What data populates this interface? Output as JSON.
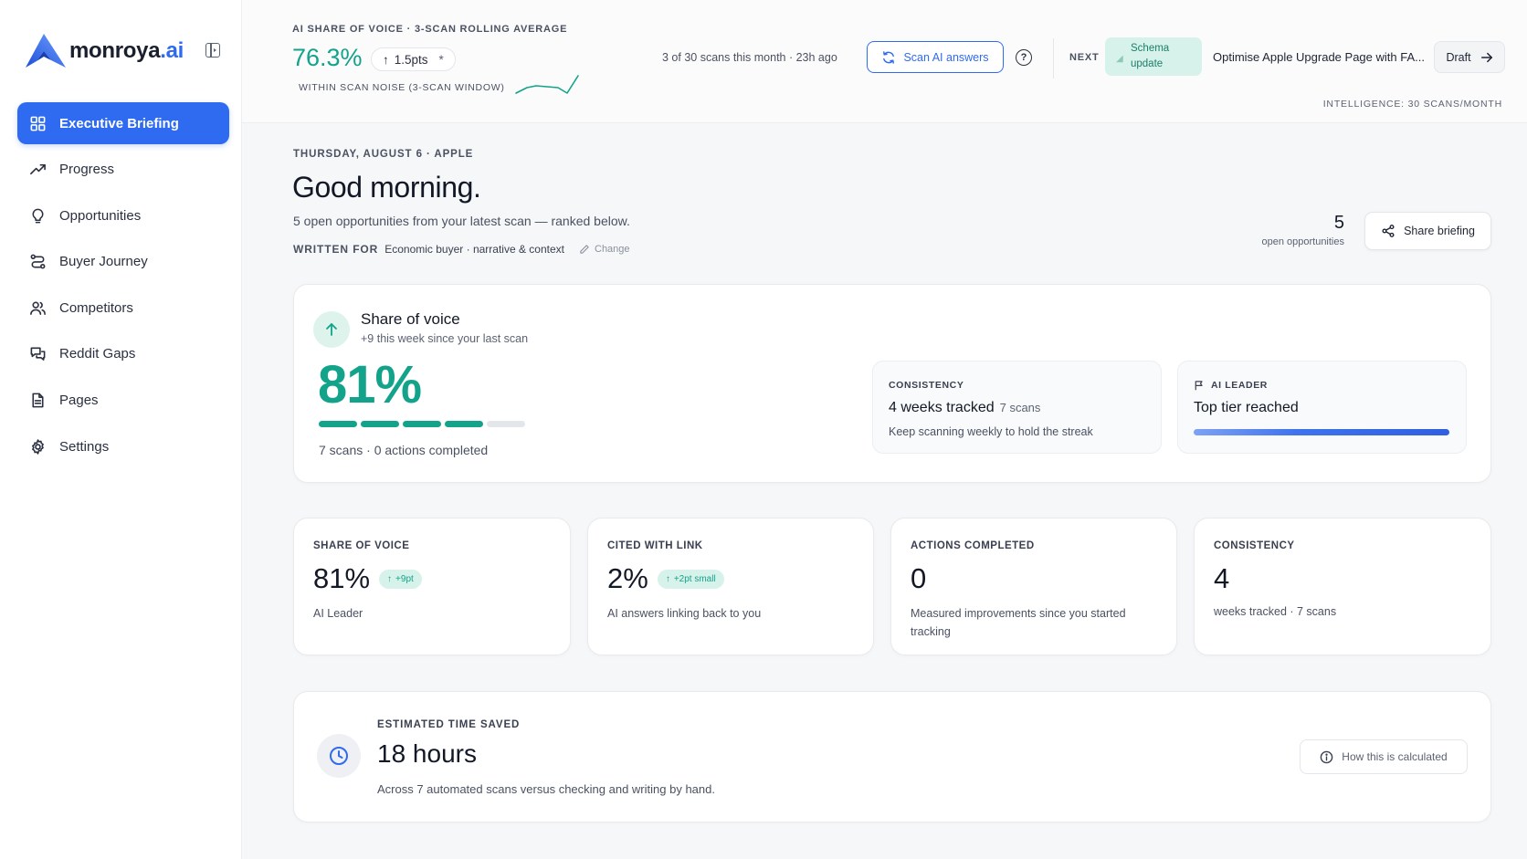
{
  "brand": {
    "name": "monroya",
    "suffix": ".ai"
  },
  "sidebar": {
    "items": [
      {
        "label": "Executive Briefing",
        "icon": "grid-icon",
        "active": true
      },
      {
        "label": "Progress",
        "icon": "trending-up-icon"
      },
      {
        "label": "Opportunities",
        "icon": "lightbulb-icon"
      },
      {
        "label": "Buyer Journey",
        "icon": "route-icon"
      },
      {
        "label": "Competitors",
        "icon": "users-icon"
      },
      {
        "label": "Reddit Gaps",
        "icon": "chat-icon"
      },
      {
        "label": "Pages",
        "icon": "document-icon"
      },
      {
        "label": "Settings",
        "icon": "gear-icon"
      }
    ]
  },
  "topbar": {
    "sov_label": "AI SHARE OF VOICE · 3-SCAN ROLLING AVERAGE",
    "sov_value": "76.3%",
    "delta": "1.5pts",
    "delta_mark": "*",
    "noise_label": "WITHIN SCAN NOISE (3-SCAN WINDOW)",
    "scan_count": "3 of 30 scans this month · 23h ago",
    "scan_button": "Scan AI answers",
    "next_label": "NEXT",
    "next_badge": "Schema update",
    "next_title": "Optimise Apple Upgrade Page with FA...",
    "draft_button": "Draft",
    "intel_label": "INTELLIGENCE: 30 SCANS/MONTH"
  },
  "header": {
    "date_line": "THURSDAY, AUGUST 6 · APPLE",
    "greeting": "Good morning.",
    "subline": "5 open opportunities from your latest scan — ranked below.",
    "written_for_label": "WRITTEN FOR",
    "written_for_value": "Economic buyer · narrative & context",
    "change_link": "Change",
    "open_count": "5",
    "open_count_label": "open opportunities",
    "share_button": "Share briefing"
  },
  "hero": {
    "title": "Share of voice",
    "subtitle": "+9 this week since your last scan",
    "value": "81%",
    "segments_total": 5,
    "segments_filled": 4,
    "footer": "7 scans · 0 actions completed",
    "consistency": {
      "label": "CONSISTENCY",
      "main": "4 weeks tracked",
      "main_small": "7 scans",
      "foot": "Keep scanning weekly to hold the streak"
    },
    "leader": {
      "label": "AI LEADER",
      "main": "Top tier reached",
      "progress": 1.0
    }
  },
  "stats": [
    {
      "label": "SHARE OF VOICE",
      "value": "81%",
      "badge": "+9pt",
      "foot": "AI Leader"
    },
    {
      "label": "CITED WITH LINK",
      "value": "2%",
      "badge": "+2pt small",
      "foot": "AI answers linking back to you"
    },
    {
      "label": "ACTIONS COMPLETED",
      "value": "0",
      "badge": "",
      "foot": "Measured improvements since you started tracking"
    },
    {
      "label": "CONSISTENCY",
      "value": "4",
      "badge": "",
      "foot": "weeks tracked · 7 scans"
    }
  ],
  "time_saved": {
    "label": "ESTIMATED TIME SAVED",
    "value": "18 hours",
    "foot": "Across 7 automated scans versus checking and writing by hand.",
    "how_button": "How this is calculated"
  },
  "colors": {
    "accent": "#2f6bf0",
    "positive": "#13a38a",
    "positive_bg": "#d7f2ea"
  }
}
